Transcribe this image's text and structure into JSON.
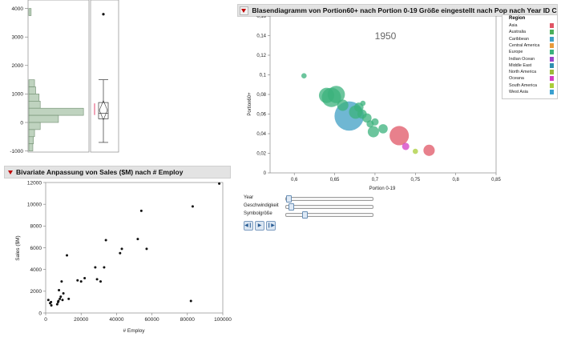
{
  "top_left": {
    "y_ticks": [
      "4000",
      "3000",
      "2000",
      "1000",
      "0",
      "-1000"
    ],
    "histogram_bins": [
      {
        "low": 3750,
        "high": 4000,
        "count": 0.04
      },
      {
        "low": 1250,
        "high": 1500,
        "count": 0.1
      },
      {
        "low": 1000,
        "high": 1250,
        "count": 0.12
      },
      {
        "low": 750,
        "high": 1000,
        "count": 0.18
      },
      {
        "low": 500,
        "high": 750,
        "count": 0.2
      },
      {
        "low": 250,
        "high": 500,
        "count": 0.96
      },
      {
        "low": 0,
        "high": 250,
        "count": 0.52
      },
      {
        "low": -250,
        "high": 0,
        "count": 0.2
      },
      {
        "low": -500,
        "high": -250,
        "count": 0.1
      },
      {
        "low": -750,
        "high": -500,
        "count": 0.08
      },
      {
        "low": -1000,
        "high": -750,
        "count": 0.07
      }
    ],
    "boxplot": {
      "min": -700,
      "q1": 130,
      "median": 320,
      "q3": 700,
      "max": 1500,
      "mean": 430,
      "outlier": 3800
    }
  },
  "bivariate": {
    "title": "Bivariate Anpassung von Sales ($M) nach # Employ",
    "xlabel": "# Employ",
    "ylabel": "Sales ($M)",
    "x_ticks": [
      "0",
      "20000",
      "40000",
      "60000",
      "80000",
      "100000"
    ],
    "y_ticks": [
      "12000",
      "10000",
      "8000",
      "6000",
      "4000",
      "2000",
      "0"
    ]
  },
  "bubble": {
    "title": "Blasendiagramm von Portion60+ nach Portion 0-19 Größe eingestellt nach Pop nach Year ID Country",
    "year_label": "1950",
    "xlabel": "Portion 0-19",
    "ylabel": "Portion60+",
    "x_ticks": [
      "0,6",
      "0,65",
      "0,7",
      "0,75",
      "0,8",
      "0,85"
    ],
    "y_ticks": [
      "0,16",
      "0,14",
      "0,12",
      "0,1",
      "0,08",
      "0,06",
      "0,04",
      "0,02",
      "0"
    ],
    "controls": [
      {
        "label": "Year",
        "value": 0
      },
      {
        "label": "Geschwindigkeit",
        "value": 0.03
      },
      {
        "label": "Symbolgröße",
        "value": 0.2
      }
    ],
    "legend": {
      "title": "Region",
      "items": [
        {
          "name": "Asia",
          "color": "#e05565"
        },
        {
          "name": "Australia",
          "color": "#4caf5a"
        },
        {
          "name": "Caribbean",
          "color": "#3f9fc4"
        },
        {
          "name": "Central America",
          "color": "#e89b3c"
        },
        {
          "name": "Europe",
          "color": "#3bb27c"
        },
        {
          "name": "Indian Ocean",
          "color": "#9a45c9"
        },
        {
          "name": "Middle East",
          "color": "#2f8fb0"
        },
        {
          "name": "North America",
          "color": "#9dbb3a"
        },
        {
          "name": "Oceana",
          "color": "#d33ec4"
        },
        {
          "name": "South America",
          "color": "#aacd3a"
        },
        {
          "name": "West Asia",
          "color": "#3aa0d0"
        }
      ]
    }
  },
  "chart_data": [
    {
      "type": "bar",
      "title": "",
      "orientation": "horizontal",
      "ylim": [
        -1000,
        4000
      ]
    },
    {
      "type": "scatter",
      "title": "Bivariate Anpassung von Sales ($M) nach # Employ",
      "xlabel": "# Employ",
      "ylabel": "Sales ($M)",
      "xlim": [
        0,
        100000
      ],
      "ylim": [
        0,
        12000
      ],
      "points": [
        [
          1500,
          1200
        ],
        [
          2500,
          900
        ],
        [
          3200,
          700
        ],
        [
          3000,
          1000
        ],
        [
          7000,
          1000
        ],
        [
          7500,
          2100
        ],
        [
          6500,
          800
        ],
        [
          8000,
          1300
        ],
        [
          8500,
          1500
        ],
        [
          9000,
          2900
        ],
        [
          10000,
          1800
        ],
        [
          9500,
          1200
        ],
        [
          7200,
          1100
        ],
        [
          12000,
          5300
        ],
        [
          13000,
          1300
        ],
        [
          18000,
          3000
        ],
        [
          20000,
          2900
        ],
        [
          22000,
          3200
        ],
        [
          28000,
          4200
        ],
        [
          29000,
          3100
        ],
        [
          31000,
          2900
        ],
        [
          33000,
          4200
        ],
        [
          34000,
          6700
        ],
        [
          42000,
          5500
        ],
        [
          43000,
          5900
        ],
        [
          52000,
          6800
        ],
        [
          54000,
          9400
        ],
        [
          57000,
          5900
        ],
        [
          82000,
          1100
        ],
        [
          83000,
          9800
        ],
        [
          98000,
          11900
        ]
      ]
    },
    {
      "type": "scatter",
      "title": "Blasendiagramm von Portion60+ nach Portion 0-19 Größe eingestellt nach Pop nach Year ID Country",
      "xlabel": "Portion 0-19",
      "ylabel": "Portion60+",
      "xlim": [
        0.57,
        0.85
      ],
      "ylim": [
        0,
        0.16
      ],
      "points": [
        {
          "x": 0.612,
          "y": 0.099,
          "size": 2,
          "region": "Europe"
        },
        {
          "x": 0.64,
          "y": 0.079,
          "size": 7,
          "region": "Europe"
        },
        {
          "x": 0.646,
          "y": 0.077,
          "size": 9,
          "region": "Europe"
        },
        {
          "x": 0.652,
          "y": 0.08,
          "size": 8,
          "region": "Europe"
        },
        {
          "x": 0.66,
          "y": 0.069,
          "size": 5,
          "region": "Europe"
        },
        {
          "x": 0.668,
          "y": 0.058,
          "size": 14,
          "region": "Caribbean"
        },
        {
          "x": 0.676,
          "y": 0.062,
          "size": 6,
          "region": "Europe"
        },
        {
          "x": 0.68,
          "y": 0.067,
          "size": 4,
          "region": "Europe"
        },
        {
          "x": 0.684,
          "y": 0.06,
          "size": 4,
          "region": "Europe"
        },
        {
          "x": 0.69,
          "y": 0.056,
          "size": 4,
          "region": "Europe"
        },
        {
          "x": 0.694,
          "y": 0.05,
          "size": 3,
          "region": "Europe"
        },
        {
          "x": 0.685,
          "y": 0.071,
          "size": 2,
          "region": "Europe"
        },
        {
          "x": 0.698,
          "y": 0.042,
          "size": 5,
          "region": "Europe"
        },
        {
          "x": 0.71,
          "y": 0.045,
          "size": 4,
          "region": "Europe"
        },
        {
          "x": 0.73,
          "y": 0.038,
          "size": 9,
          "region": "Asia"
        },
        {
          "x": 0.738,
          "y": 0.027,
          "size": 3,
          "region": "Oceana"
        },
        {
          "x": 0.75,
          "y": 0.022,
          "size": 2,
          "region": "South America"
        },
        {
          "x": 0.767,
          "y": 0.023,
          "size": 5,
          "region": "Asia"
        },
        {
          "x": 0.7,
          "y": 0.052,
          "size": 3,
          "region": "Europe"
        }
      ]
    }
  ]
}
